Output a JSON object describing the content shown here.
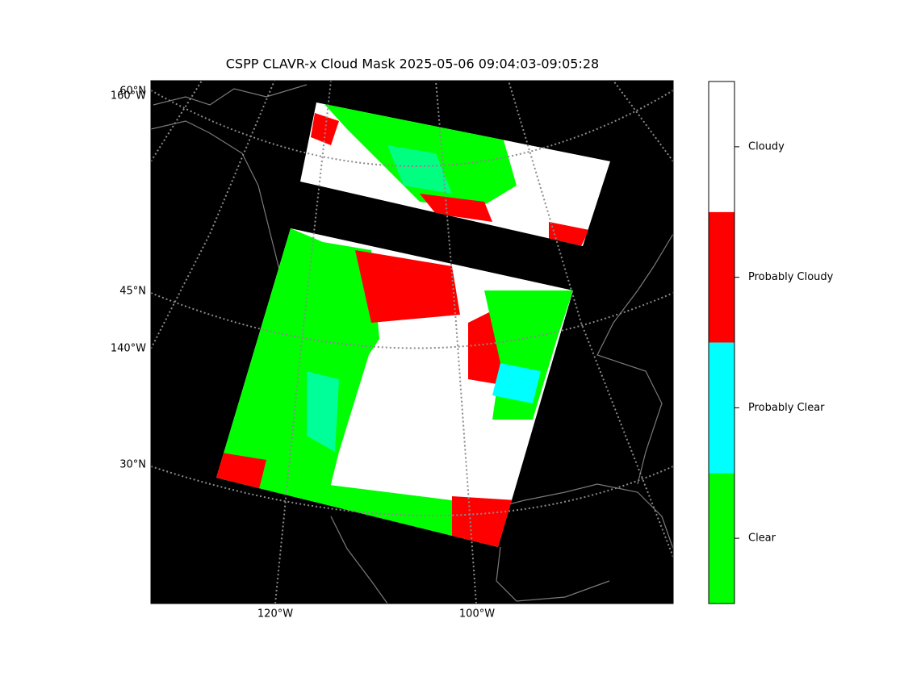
{
  "title": "CSPP CLAVR-x Cloud Mask 2025-05-06 09:04:03-09:05:28",
  "map": {
    "left_labels": [
      "60°N",
      "160°W",
      "45°N",
      "140°W",
      "30°N"
    ],
    "bottom_labels": [
      "120°W",
      "100°W"
    ]
  },
  "colorbar": {
    "categories": [
      "Clear",
      "Probably Clear",
      "Probably Cloudy",
      "Cloudy"
    ],
    "colors": [
      "#00ff00",
      "#00ffff",
      "#ff0000",
      "#ffffff"
    ]
  }
}
